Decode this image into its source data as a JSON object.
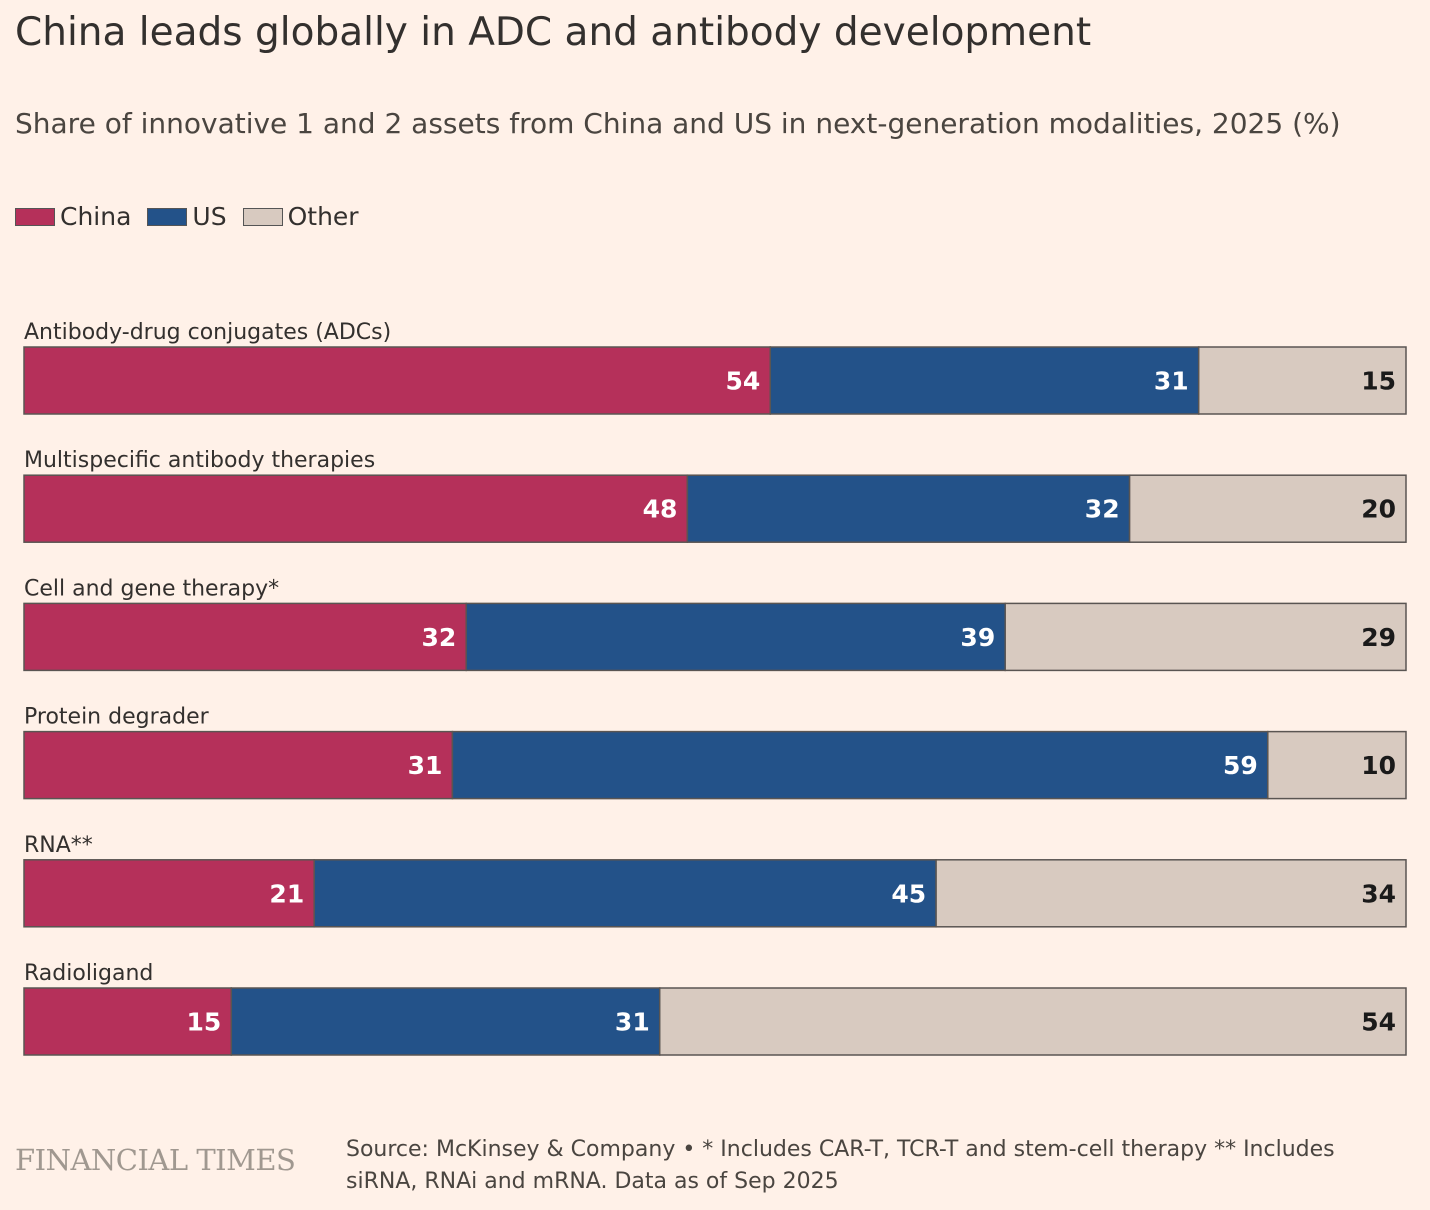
{
  "header": {
    "title": "China leads globally in ADC and antibody development",
    "subtitle": "Share of innovative 1 and 2 assets from China and US in next-generation modalities, 2025 (%)"
  },
  "legend": [
    {
      "label": "China",
      "color": "#b5305a"
    },
    {
      "label": "US",
      "color": "#235289"
    },
    {
      "label": "Other",
      "color": "#d8cac0"
    }
  ],
  "chart_data": {
    "type": "bar",
    "orientation": "horizontal",
    "stacked": true,
    "categories": [
      "Antibody-drug conjugates (ADCs)",
      "Multispecific antibody therapies",
      "Cell and gene therapy*",
      "Protein degrader",
      "RNA**",
      "Radioligand"
    ],
    "series": [
      {
        "name": "China",
        "color": "#b5305a",
        "label_color": "#ffffff",
        "values": [
          54,
          48,
          32,
          31,
          21,
          15
        ]
      },
      {
        "name": "US",
        "color": "#235289",
        "label_color": "#ffffff",
        "values": [
          31,
          32,
          39,
          59,
          45,
          31
        ]
      },
      {
        "name": "Other",
        "color": "#d8cac0",
        "label_color": "#1a1a1a",
        "values": [
          15,
          20,
          29,
          10,
          34,
          54
        ]
      }
    ],
    "xlim": [
      0,
      100
    ],
    "grid": false,
    "legend_position": "top-left"
  },
  "footer": {
    "logo": "FINANCIAL TIMES",
    "source": "Source: McKinsey & Company • * Includes CAR-T, TCR-T and stem-cell therapy  ** Includes siRNA, RNAi and mRNA. Data as of Sep 2025"
  }
}
